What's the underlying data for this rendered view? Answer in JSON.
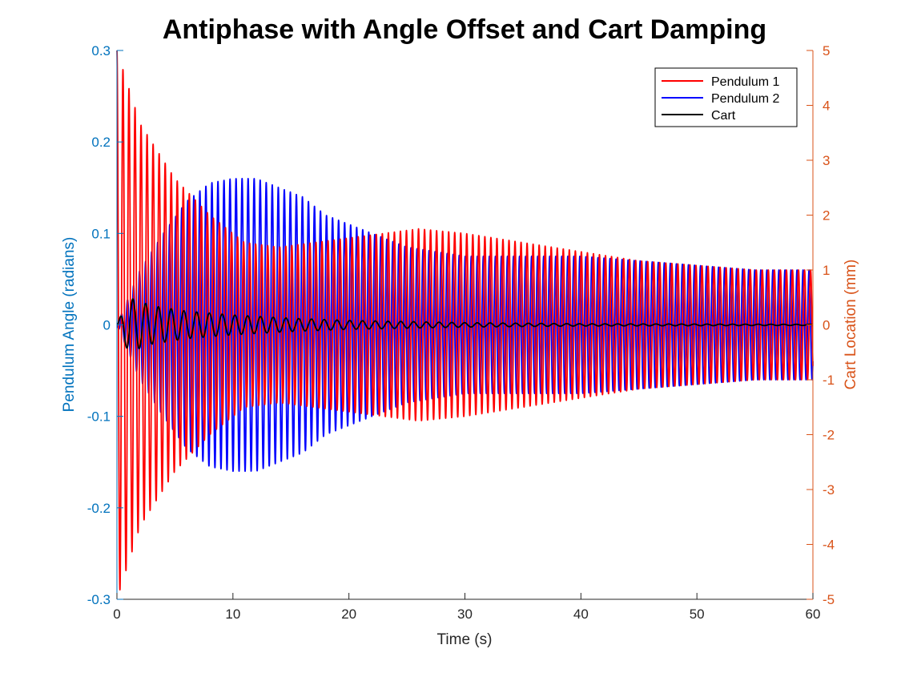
{
  "chart_data": {
    "type": "line",
    "title": "Antiphase with Angle Offset and Cart Damping",
    "xlabel": "Time (s)",
    "ylabel_left": "Pendulum Angle (radians)",
    "ylabel_right": "Cart Location (mm)",
    "xlim": [
      0,
      60
    ],
    "ylim_left": [
      -0.3,
      0.3
    ],
    "ylim_right": [
      -5,
      5
    ],
    "x_ticks": [
      "0",
      "10",
      "20",
      "30",
      "40",
      "50",
      "60"
    ],
    "y_ticks_left": [
      "-0.3",
      "-0.2",
      "-0.1",
      "0",
      "0.1",
      "0.2",
      "0.3"
    ],
    "y_ticks_right": [
      "-5",
      "-4",
      "-3",
      "-2",
      "-1",
      "0",
      "1",
      "2",
      "3",
      "4",
      "5"
    ],
    "grid": false,
    "legend_position": "top-right",
    "colors": {
      "left_axis": "#0072bd",
      "right_axis": "#d95319",
      "pendulum1": "#ff0000",
      "pendulum2": "#0000ff",
      "cart": "#000000"
    },
    "series": [
      {
        "name": "Pendulum 1",
        "axis": "left",
        "color": "#ff0000",
        "oscillation_period": 0.52,
        "phase": "cos",
        "envelope": {
          "t": [
            0,
            2,
            5,
            8,
            11,
            14,
            17,
            20,
            23,
            26,
            30,
            35,
            40,
            45,
            50,
            55,
            60
          ],
          "amplitude": [
            0.3,
            0.22,
            0.16,
            0.12,
            0.09,
            0.085,
            0.09,
            0.095,
            0.1,
            0.105,
            0.1,
            0.09,
            0.08,
            0.07,
            0.065,
            0.06,
            0.06
          ]
        }
      },
      {
        "name": "Pendulum 2",
        "axis": "left",
        "color": "#0000ff",
        "oscillation_period": 0.52,
        "phase": "-sin",
        "envelope": {
          "t": [
            0,
            2,
            4,
            6,
            8,
            10,
            12,
            14,
            16,
            18,
            20,
            25,
            30,
            35,
            40,
            45,
            50,
            55,
            60
          ],
          "amplitude": [
            0.0,
            0.06,
            0.1,
            0.135,
            0.155,
            0.16,
            0.16,
            0.15,
            0.14,
            0.12,
            0.11,
            0.085,
            0.075,
            0.075,
            0.075,
            0.07,
            0.065,
            0.06,
            0.06
          ]
        }
      },
      {
        "name": "Cart",
        "axis": "right",
        "color": "#000000",
        "oscillation_period": 1.1,
        "phase": "sin",
        "envelope": {
          "t": [
            0,
            1,
            3,
            6,
            10,
            15,
            20,
            30,
            40,
            60
          ],
          "amplitude": [
            0.0,
            0.5,
            0.35,
            0.25,
            0.18,
            0.12,
            0.08,
            0.04,
            0.02,
            0.01
          ]
        }
      }
    ]
  }
}
